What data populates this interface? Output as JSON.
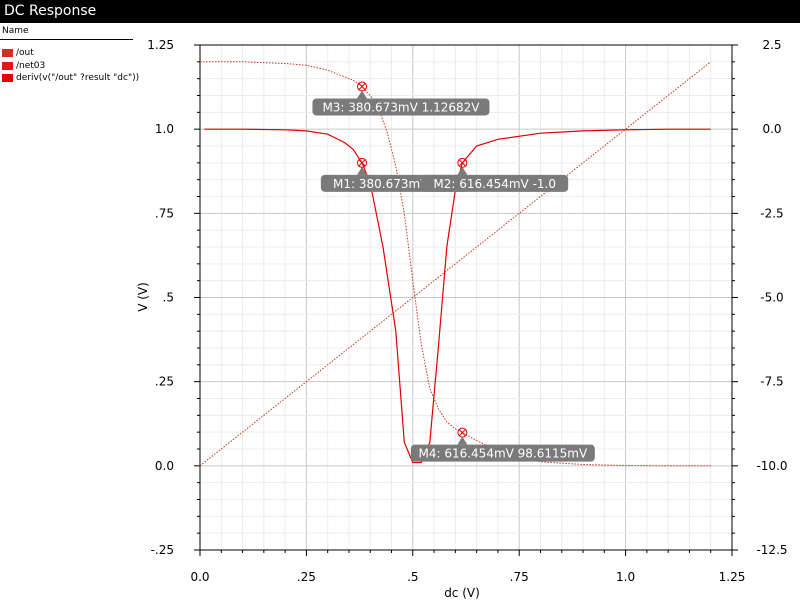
{
  "window": {
    "title": "DC Response"
  },
  "legend": {
    "header": "Name",
    "items": [
      {
        "label": "/out",
        "color": "#c8341e"
      },
      {
        "label": "/net03",
        "color": "#e01818"
      },
      {
        "label": "deriv(v(\"/out\" ?result \"dc\"))",
        "color": "#e00000"
      }
    ]
  },
  "chart_data": {
    "type": "line",
    "xlabel": "dc (V)",
    "ylabel": "V (V)",
    "xlim": [
      0,
      1.25
    ],
    "ylim_left": [
      -0.25,
      1.25
    ],
    "ylim_right": [
      -12.5,
      2.5
    ],
    "x_ticks": [
      {
        "value": 0,
        "label": "0.0"
      },
      {
        "value": 0.25,
        "label": ".25"
      },
      {
        "value": 0.5,
        "label": ".5"
      },
      {
        "value": 0.75,
        "label": ".75"
      },
      {
        "value": 1.0,
        "label": "1.0"
      },
      {
        "value": 1.25,
        "label": "1.25"
      }
    ],
    "y_left_ticks": [
      {
        "value": 1.25,
        "label": "1.25"
      },
      {
        "value": 1.0,
        "label": "1.0"
      },
      {
        "value": 0.75,
        "label": ".75"
      },
      {
        "value": 0.5,
        "label": ".5"
      },
      {
        "value": 0.25,
        "label": ".25"
      },
      {
        "value": 0.0,
        "label": "0.0"
      },
      {
        "value": -0.25,
        "label": "-.25"
      }
    ],
    "y_right_ticks": [
      {
        "value": 2.5,
        "label": "2.5"
      },
      {
        "value": 0.0,
        "label": "0.0"
      },
      {
        "value": -2.5,
        "label": "-2.5"
      },
      {
        "value": -5.0,
        "label": "-5.0"
      },
      {
        "value": -7.5,
        "label": "-7.5"
      },
      {
        "value": -10.0,
        "label": "-10.0"
      },
      {
        "value": -12.5,
        "label": "-12.5"
      }
    ],
    "grid": true,
    "series": [
      {
        "axis": "left",
        "color": "#c8341e",
        "style": "dotted",
        "x": [
          0.0,
          0.1,
          0.2,
          0.25,
          0.3,
          0.33,
          0.36,
          0.3807,
          0.4,
          0.42,
          0.44,
          0.46,
          0.48,
          0.5,
          0.52,
          0.54,
          0.56,
          0.58,
          0.6,
          0.6165,
          0.65,
          0.7,
          0.75,
          0.8,
          0.9,
          1.0,
          1.1,
          1.2
        ],
        "y": [
          1.2,
          1.2,
          1.195,
          1.19,
          1.175,
          1.16,
          1.145,
          1.127,
          1.1,
          1.06,
          0.99,
          0.89,
          0.75,
          0.55,
          0.36,
          0.23,
          0.17,
          0.13,
          0.11,
          0.0986,
          0.075,
          0.045,
          0.025,
          0.012,
          0.004,
          0.001,
          0.0,
          0.0
        ]
      },
      {
        "axis": "left",
        "color": "#c8341e",
        "style": "dotted",
        "x": [
          0.0,
          1.2
        ],
        "y": [
          0.0,
          1.2
        ]
      },
      {
        "axis": "right",
        "color": "#e00000",
        "style": "solid",
        "x": [
          0.01,
          0.1,
          0.2,
          0.25,
          0.3,
          0.34,
          0.36,
          0.3807,
          0.4,
          0.43,
          0.46,
          0.48,
          0.5,
          0.52,
          0.54,
          0.56,
          0.58,
          0.6,
          0.6165,
          0.65,
          0.7,
          0.8,
          0.9,
          1.0,
          1.1,
          1.2
        ],
        "y": [
          0.0,
          0.0,
          -0.02,
          -0.05,
          -0.15,
          -0.4,
          -0.6,
          -1.0,
          -1.6,
          -3.5,
          -6.0,
          -9.3,
          -9.9,
          -9.9,
          -9.3,
          -6.5,
          -3.5,
          -1.8,
          -1.0,
          -0.5,
          -0.3,
          -0.12,
          -0.05,
          -0.02,
          0.0,
          0.0
        ]
      }
    ],
    "markers": [
      {
        "axis": "right",
        "x": 0.380673,
        "y": -1.0,
        "label": "M1: 380.673mV -1.0",
        "callout": "below"
      },
      {
        "axis": "right",
        "x": 0.616454,
        "y": -1.0,
        "label": "M2: 616.454mV -1.0",
        "callout": "below"
      },
      {
        "axis": "left",
        "x": 0.380673,
        "y": 1.12682,
        "label": "M3: 380.673mV 1.12682V",
        "callout": "below"
      },
      {
        "axis": "left",
        "x": 0.616454,
        "y": 0.0986115,
        "label": "M4: 616.454mV 98.6115mV",
        "callout": "below"
      }
    ]
  }
}
